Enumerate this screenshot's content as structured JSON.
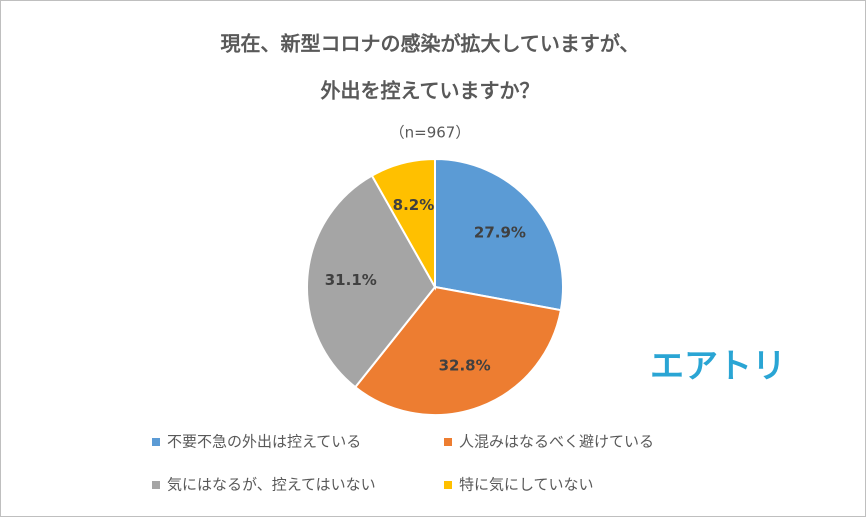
{
  "chart_data": {
    "type": "pie",
    "title": [
      "現在、新型コロナの感染が拡大していますが、",
      "外出を控えていますか？"
    ],
    "subtitle": "（n=967）",
    "categories": [
      "不要不急の外出は控えている",
      "人混みはなるべく避けている",
      "気にはなるが、控えてはいない",
      "特に気にしていない"
    ],
    "values": [
      27.9,
      32.8,
      31.1,
      8.2
    ],
    "value_labels": [
      "27.9%",
      "32.8%",
      "31.1%",
      "8.2%"
    ],
    "colors": [
      "#5b9bd5",
      "#ed7d31",
      "#a5a5a5",
      "#ffc000"
    ],
    "logo": "エアトリ"
  }
}
